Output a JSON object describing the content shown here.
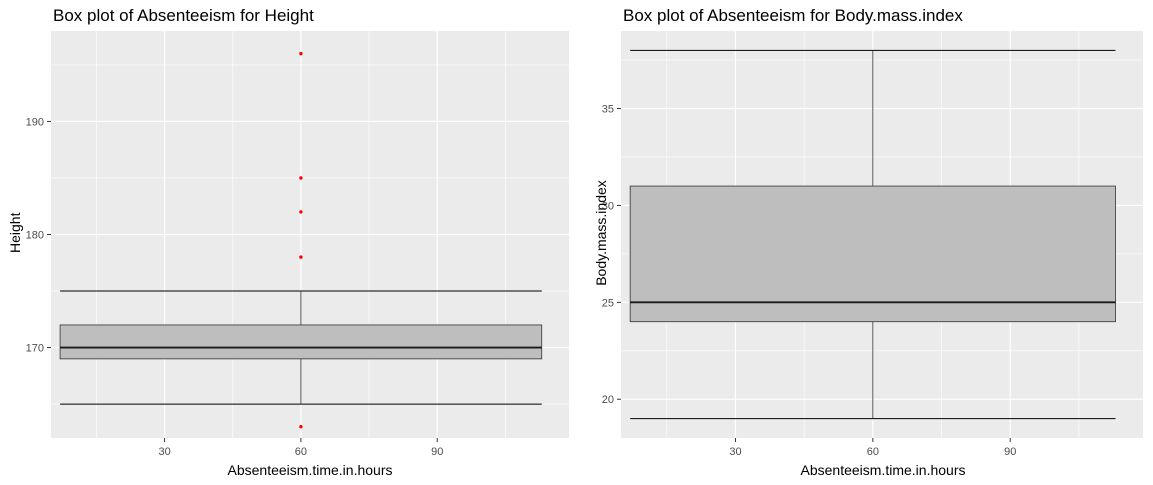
{
  "chart_data": [
    {
      "type": "boxplot",
      "title": "Box plot of Absenteeism for Height",
      "xlabel": "Absenteeism.time.in.hours",
      "ylabel": "Height",
      "xlim": [
        5,
        119
      ],
      "ylim": [
        162,
        198
      ],
      "x_ticks": [
        30,
        60,
        90
      ],
      "y_ticks": [
        170,
        180,
        190
      ],
      "grid": true,
      "box": {
        "x_center": 60,
        "x_range": [
          7,
          113
        ],
        "lower_whisker": 165,
        "q1": 169,
        "median": 170,
        "q3": 172,
        "upper_whisker": 175
      },
      "outliers": [
        {
          "x": 60,
          "y": 196
        },
        {
          "x": 60,
          "y": 185
        },
        {
          "x": 60,
          "y": 182
        },
        {
          "x": 60,
          "y": 178
        },
        {
          "x": 60,
          "y": 163
        }
      ],
      "outlier_color": "#ff0000"
    },
    {
      "type": "boxplot",
      "title": "Box plot of Absenteeism for Body.mass.index",
      "xlabel": "Absenteeism.time.in.hours",
      "ylabel": "Body.mass.index",
      "xlim": [
        5,
        119
      ],
      "ylim": [
        18,
        39
      ],
      "x_ticks": [
        30,
        60,
        90
      ],
      "y_ticks": [
        20,
        25,
        30,
        35
      ],
      "grid": true,
      "box": {
        "x_center": 60,
        "x_range": [
          7,
          113
        ],
        "lower_whisker": 19,
        "q1": 24,
        "median": 25,
        "q3": 31,
        "upper_whisker": 38
      },
      "outliers": [],
      "outlier_color": "#ff0000"
    }
  ]
}
